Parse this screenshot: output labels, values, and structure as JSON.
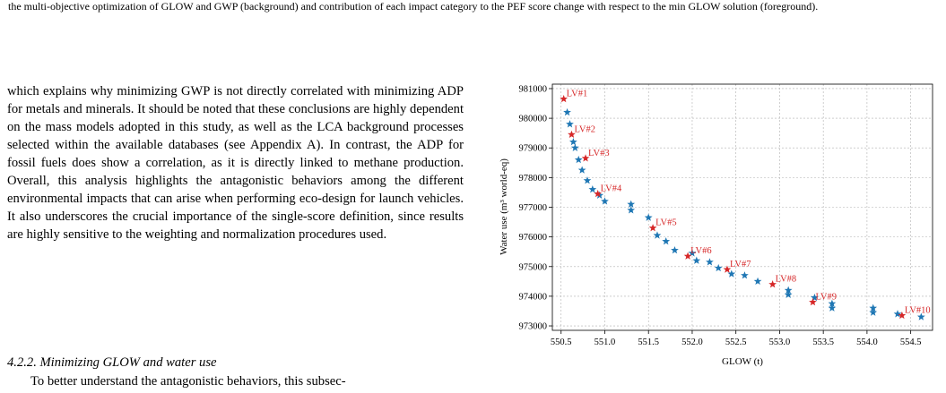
{
  "caption": "the multi-objective optimization of GLOW and GWP (background) and contribution of each impact category to the PEF score change with respect to the min GLOW solution (foreground).",
  "paragraph": "which explains why minimizing GWP is not directly correlated with minimizing ADP for metals and minerals. It should be noted that these conclusions are highly dependent on the mass models adopted in this study, as well as the LCA background processes selected within the available databases (see Appendix A). In contrast, the ADP for fossil fuels does show a correlation, as it is directly linked to methane production. Overall, this analysis highlights the antagonistic behaviors among the different environmental impacts that can arise when performing eco-design for launch vehicles. It also underscores the crucial importance of the single-score definition, since results are highly sensitive to the weighting and normalization procedures used.",
  "section_heading": "4.2.2. Minimizing GLOW and water use",
  "next_paragraph_start": "To better understand the antagonistic behaviors, this subsec-",
  "chart_data": {
    "type": "scatter",
    "xlabel": "GLOW (t)",
    "ylabel": "Water use (m³ world-eq)",
    "xlim": [
      550.4,
      554.75
    ],
    "ylim": [
      972850,
      981150
    ],
    "xticks": [
      "550.5",
      "551.0",
      "551.5",
      "552.0",
      "552.5",
      "553.0",
      "553.5",
      "554.0",
      "554.5"
    ],
    "yticks": [
      "973000",
      "974000",
      "975000",
      "976000",
      "977000",
      "978000",
      "979000",
      "980000",
      "981000"
    ],
    "grid": true,
    "series": [
      {
        "color": "#1f77b4",
        "x": [
          550.57,
          550.6,
          550.64,
          550.66,
          550.7,
          550.74,
          550.8,
          550.86,
          550.94,
          551.0,
          551.3,
          551.3,
          551.5,
          551.6,
          551.7,
          551.8,
          552.0,
          552.05,
          552.2,
          552.3,
          552.45,
          552.6,
          552.75,
          553.1,
          553.1,
          553.4,
          553.6,
          553.6,
          554.07,
          554.07,
          554.35,
          554.62
        ],
        "y": [
          980200,
          979800,
          979200,
          979000,
          978600,
          978250,
          977900,
          977600,
          977400,
          977200,
          977100,
          976900,
          976650,
          976050,
          975850,
          975550,
          975450,
          975200,
          975150,
          974950,
          974750,
          974700,
          974500,
          974200,
          974050,
          973950,
          973750,
          973600,
          973600,
          973450,
          973400,
          973300
        ]
      },
      {
        "color": "#d62728",
        "x": [
          550.53,
          550.62,
          550.78,
          550.92,
          551.55,
          551.95,
          552.4,
          552.92,
          553.38,
          554.4
        ],
        "y": [
          980650,
          979450,
          978650,
          977450,
          976300,
          975350,
          974900,
          974400,
          973800,
          973350
        ],
        "labels": [
          "LV#1",
          "LV#2",
          "LV#3",
          "LV#4",
          "LV#5",
          "LV#6",
          "LV#7",
          "LV#8",
          "LV#9",
          "LV#10"
        ]
      }
    ]
  }
}
